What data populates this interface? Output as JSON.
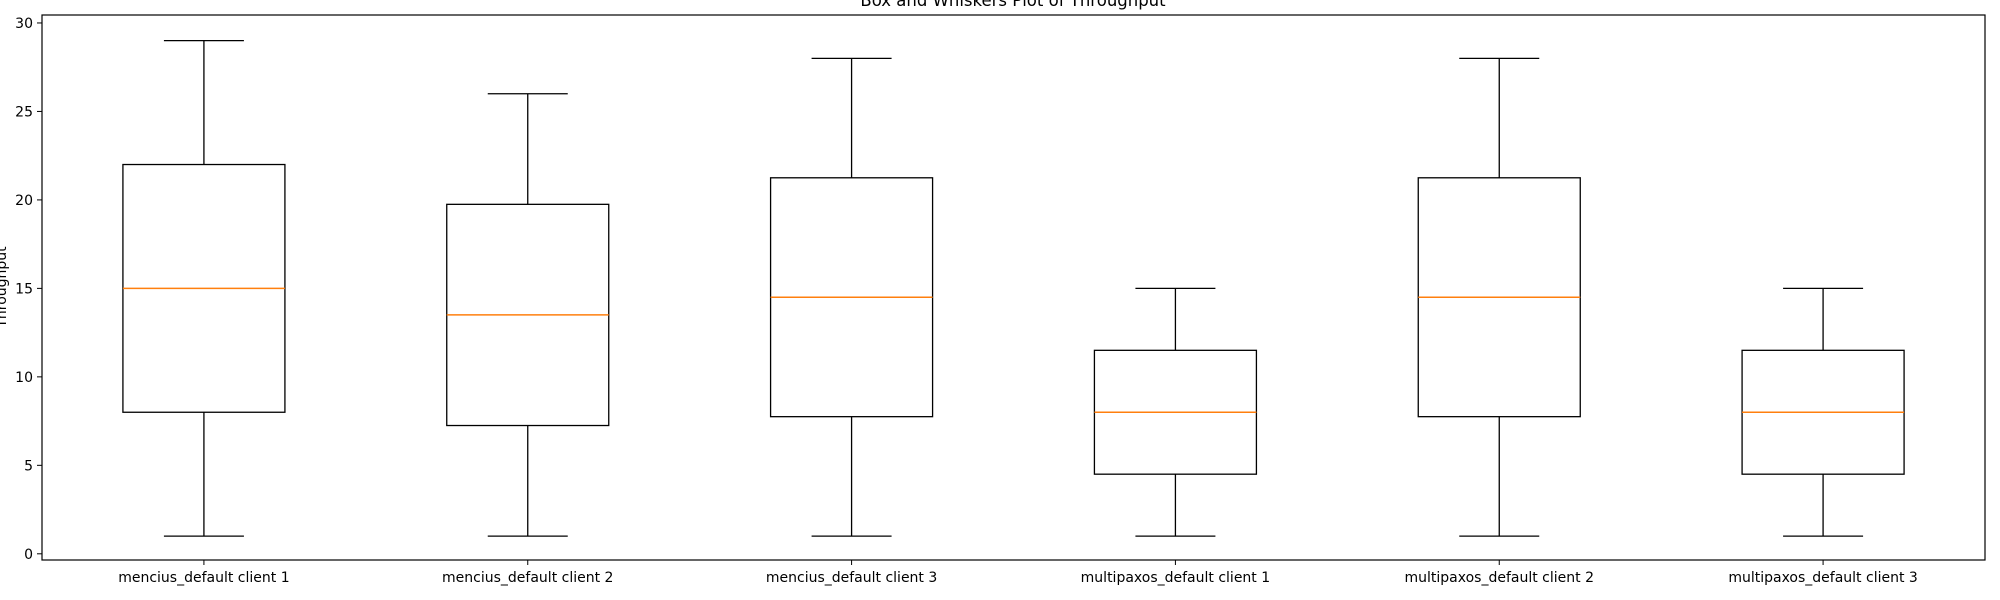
{
  "chart_data": {
    "type": "box",
    "title": "Box and Whiskers Plot of Throughput",
    "xlabel": "",
    "ylabel": "Throughput",
    "ylim": [
      -0.35,
      30.45
    ],
    "yticks": [
      0,
      5,
      10,
      15,
      20,
      25,
      30
    ],
    "grid": false,
    "colors": {
      "box": "#000000",
      "median": "#ff7f0e",
      "frame": "#000000"
    },
    "categories": [
      "mencius_default client 1",
      "mencius_default client 2",
      "mencius_default client 3",
      "multipaxos_default client 1",
      "multipaxos_default client 2",
      "multipaxos_default client 3"
    ],
    "boxes": [
      {
        "whisker_low": 1,
        "q1": 8.0,
        "median": 15.0,
        "q3": 22.0,
        "whisker_high": 29
      },
      {
        "whisker_low": 1,
        "q1": 7.25,
        "median": 13.5,
        "q3": 19.75,
        "whisker_high": 26
      },
      {
        "whisker_low": 1,
        "q1": 7.75,
        "median": 14.5,
        "q3": 21.25,
        "whisker_high": 28
      },
      {
        "whisker_low": 1,
        "q1": 4.5,
        "median": 8.0,
        "q3": 11.5,
        "whisker_high": 15
      },
      {
        "whisker_low": 1,
        "q1": 7.75,
        "median": 14.5,
        "q3": 21.25,
        "whisker_high": 28
      },
      {
        "whisker_low": 1,
        "q1": 4.5,
        "median": 8.0,
        "q3": 11.5,
        "whisker_high": 15
      }
    ]
  }
}
